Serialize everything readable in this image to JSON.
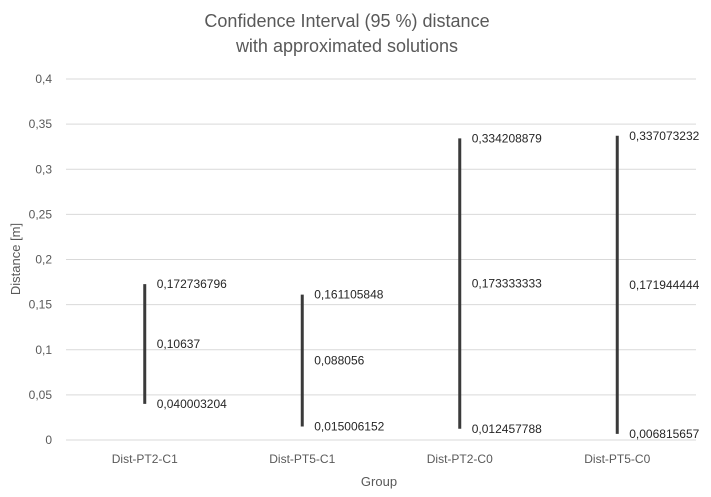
{
  "chart_data": {
    "type": "line",
    "title_lines": [
      "Confidence Interval (95 %) distance",
      "with approximated solutions"
    ],
    "xlabel": "Group",
    "ylabel": "Distance [m]",
    "ylim": [
      0,
      0.4
    ],
    "y_ticks": [
      "0",
      "0,05",
      "0,1",
      "0,15",
      "0,2",
      "0,25",
      "0,3",
      "0,35",
      "0,4"
    ],
    "grid": true,
    "legend": "none",
    "line_color": "#3a3a3a",
    "categories": [
      "Dist-PT2-C1",
      "Dist-PT5-C1",
      "Dist-PT2-C0",
      "Dist-PT5-C0"
    ],
    "series": [
      {
        "values": [
          0.172736796,
          0.161105848,
          0.334208879,
          0.337073232
        ],
        "labels": [
          "0,172736796",
          "0,161105848",
          "0,334208879",
          "0,337073232"
        ]
      },
      {
        "values": [
          0.10637,
          0.088056,
          0.173333333,
          0.171944444
        ],
        "labels": [
          "0,10637",
          "0,088056",
          "0,173333333",
          "0,171944444"
        ]
      },
      {
        "values": [
          0.040003204,
          0.015006152,
          0.012457788,
          0.006815657
        ],
        "labels": [
          "0,040003204",
          "0,015006152",
          "0,012457788",
          "0,006815657"
        ]
      }
    ]
  }
}
